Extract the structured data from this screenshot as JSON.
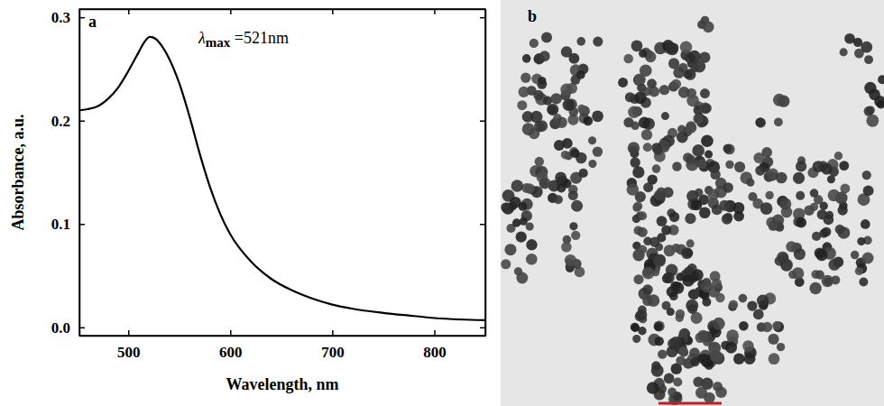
{
  "chart_data": {
    "type": "line",
    "panel_label": "a",
    "annotation": "λmax =521nm",
    "x_label": "Wavelength, nm",
    "y_label": "Absorbance, a.u.",
    "x": [
      452,
      470,
      480,
      490,
      500,
      510,
      515,
      521,
      527,
      533,
      540,
      550,
      560,
      570,
      580,
      590,
      600,
      620,
      640,
      660,
      680,
      700,
      720,
      750,
      780,
      800,
      850
    ],
    "values": [
      0.21,
      0.214,
      0.221,
      0.232,
      0.248,
      0.266,
      0.275,
      0.281,
      0.279,
      0.272,
      0.26,
      0.236,
      0.204,
      0.168,
      0.136,
      0.11,
      0.09,
      0.064,
      0.047,
      0.036,
      0.028,
      0.022,
      0.018,
      0.014,
      0.011,
      0.009,
      0.007
    ],
    "color": "#000000",
    "line_style": "solid",
    "xlim": [
      452,
      850
    ],
    "xticks": [
      500,
      600,
      700,
      800
    ],
    "ylim": [
      -0.008,
      0.308
    ],
    "yticks": [
      {
        "value": 0,
        "label": "0.0"
      },
      0.1,
      0.2,
      0.3
    ],
    "grid": false
  },
  "image_panel": {
    "label": "b"
  }
}
